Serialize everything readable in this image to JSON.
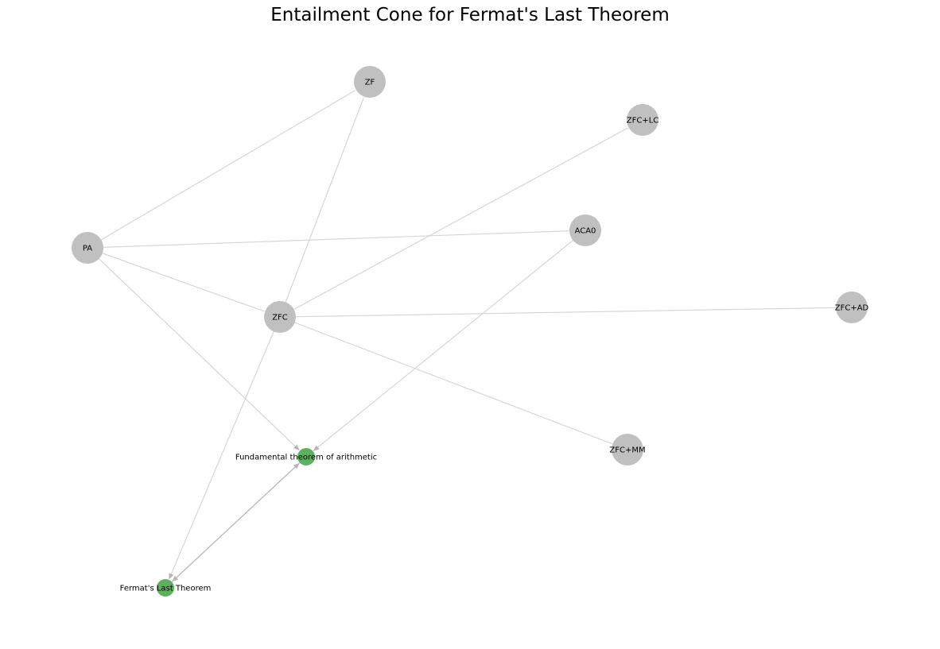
{
  "title": "Entailment Cone for Fermat's Last Theorem",
  "colors": {
    "theory_node": "#c0c0c0",
    "theorem_node": "#5cb15c",
    "edge": "#d3d3d3",
    "entailment_edge": "#b5b5b5"
  },
  "nodes": [
    {
      "id": "ZF",
      "label": "ZF",
      "kind": "theory"
    },
    {
      "id": "ZFC+LC",
      "label": "ZFC+LC",
      "kind": "theory"
    },
    {
      "id": "PA",
      "label": "PA",
      "kind": "theory"
    },
    {
      "id": "ACA0",
      "label": "ACA0",
      "kind": "theory"
    },
    {
      "id": "ZFC",
      "label": "ZFC",
      "kind": "theory"
    },
    {
      "id": "ZFC+AD",
      "label": "ZFC+AD",
      "kind": "theory"
    },
    {
      "id": "ZFC+MM",
      "label": "ZFC+MM",
      "kind": "theory"
    },
    {
      "id": "FTA",
      "label": "Fundamental theorem of arithmetic",
      "kind": "theorem"
    },
    {
      "id": "FLT",
      "label": "Fermat's Last Theorem",
      "kind": "theorem"
    }
  ],
  "edges": [
    {
      "source": "PA",
      "target": "ZF",
      "arrow": false
    },
    {
      "source": "PA",
      "target": "ACA0",
      "arrow": false
    },
    {
      "source": "PA",
      "target": "ZFC",
      "arrow": false
    },
    {
      "source": "PA",
      "target": "FTA",
      "arrow": true
    },
    {
      "source": "ZFC",
      "target": "ZF",
      "arrow": false
    },
    {
      "source": "ZFC",
      "target": "ZFC+LC",
      "arrow": false
    },
    {
      "source": "ZFC",
      "target": "ZFC+AD",
      "arrow": false
    },
    {
      "source": "ZFC",
      "target": "ZFC+MM",
      "arrow": false
    },
    {
      "source": "ZFC",
      "target": "FLT",
      "arrow": true
    },
    {
      "source": "ACA0",
      "target": "FTA",
      "arrow": true
    },
    {
      "source": "FTA",
      "target": "FLT",
      "arrow": true
    },
    {
      "source": "FLT",
      "target": "FTA",
      "arrow": true
    }
  ]
}
